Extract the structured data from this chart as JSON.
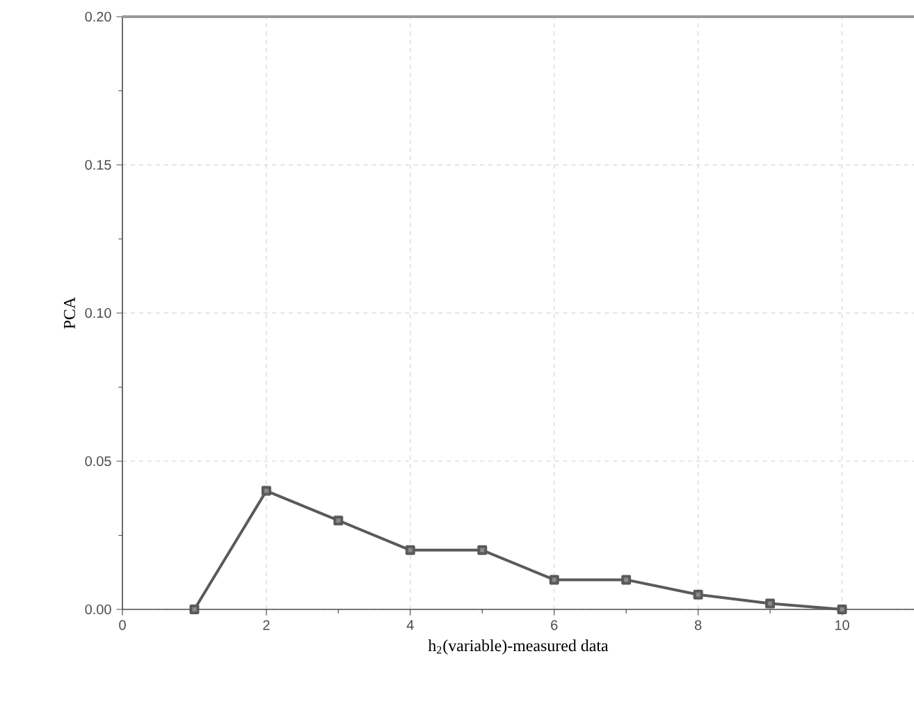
{
  "chart_data": {
    "type": "line",
    "xlabel": "h$_{2}$(variable)-measured data",
    "ylabel": "PCA",
    "x": [
      1,
      2,
      3,
      4,
      5,
      6,
      7,
      8,
      9,
      10
    ],
    "series": [
      {
        "color": "#5a5a5a",
        "values": [
          0,
          0.04,
          0.03,
          0.02,
          0.02,
          0.01,
          0.01,
          0.005,
          0.002,
          0
        ]
      }
    ],
    "xlim": [
      0,
      11
    ],
    "ylim": [
      0,
      0.2
    ],
    "xticks": [
      0,
      2,
      4,
      6,
      8,
      10
    ],
    "yticks": [
      {
        "value": 0,
        "label": "0.00"
      },
      {
        "value": 0.05,
        "label": "0.05"
      },
      {
        "value": 0.1,
        "label": "0.10"
      },
      {
        "value": 0.15,
        "label": "0.15"
      },
      {
        "value": 0.2,
        "label": "0.20"
      }
    ],
    "grid": true,
    "marker": "square",
    "line_style": "solid"
  }
}
